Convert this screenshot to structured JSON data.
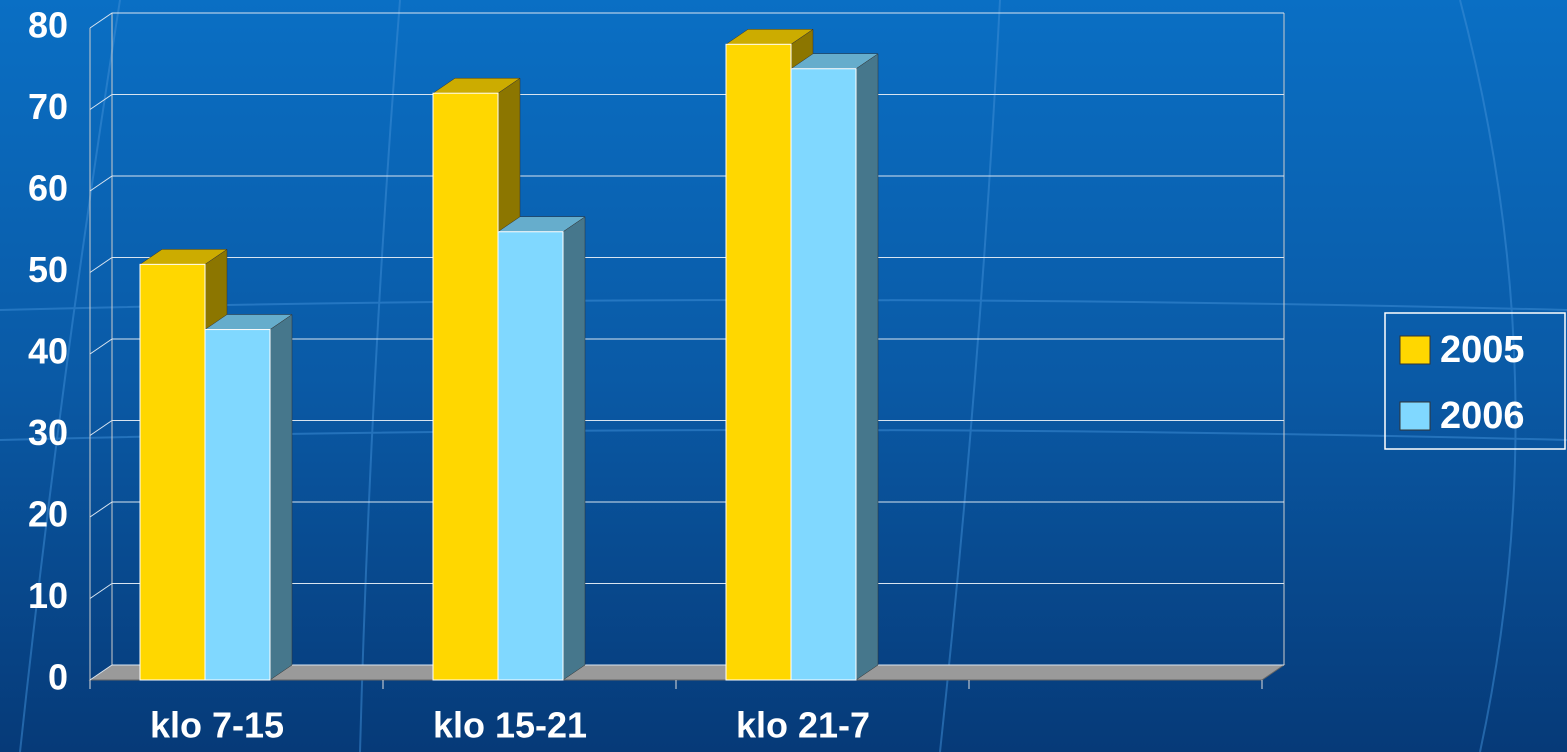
{
  "chart_data": {
    "type": "bar3d",
    "categories": [
      "klo 7-15",
      "klo 15-21",
      "klo 21-7",
      null
    ],
    "series": [
      {
        "name": "2005",
        "color": "#ffd700",
        "values": [
          51,
          72,
          78,
          null
        ]
      },
      {
        "name": "2006",
        "color": "#80d8ff",
        "values": [
          43,
          55,
          75,
          null
        ]
      }
    ],
    "ylim": [
      0,
      80
    ],
    "yticks": [
      0,
      10,
      20,
      30,
      40,
      50,
      60,
      70,
      80
    ],
    "grid": true,
    "legend": "right"
  }
}
